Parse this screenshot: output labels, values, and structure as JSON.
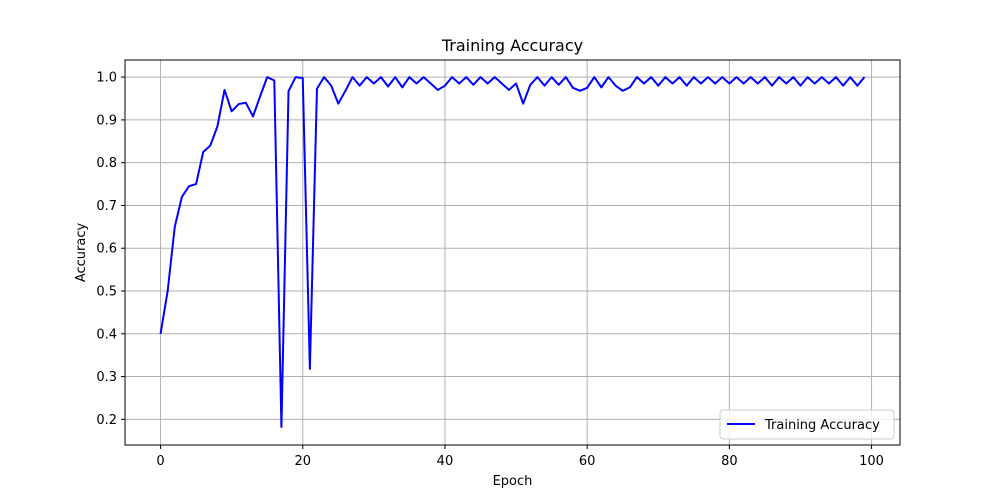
{
  "chart_data": {
    "type": "line",
    "title": "Training Accuracy",
    "xlabel": "Epoch",
    "ylabel": "Accuracy",
    "xlim": [
      -5,
      104
    ],
    "ylim": [
      0.14,
      1.04
    ],
    "xticks": [
      0,
      20,
      40,
      60,
      80,
      100
    ],
    "yticks": [
      0.2,
      0.3,
      0.4,
      0.5,
      0.6,
      0.7,
      0.8,
      0.9,
      1.0
    ],
    "xtick_labels": [
      "0",
      "20",
      "40",
      "60",
      "80",
      "100"
    ],
    "ytick_labels": [
      "0.2",
      "0.3",
      "0.4",
      "0.5",
      "0.6",
      "0.7",
      "0.8",
      "0.9",
      "1.0"
    ],
    "grid": true,
    "legend_position": "lower-right",
    "series": [
      {
        "name": "Training Accuracy",
        "color": "#0000ff",
        "x": [
          0,
          1,
          2,
          3,
          4,
          5,
          6,
          7,
          8,
          9,
          10,
          11,
          12,
          13,
          14,
          15,
          16,
          17,
          18,
          19,
          20,
          21,
          22,
          23,
          24,
          25,
          26,
          27,
          28,
          29,
          30,
          31,
          32,
          33,
          34,
          35,
          36,
          37,
          38,
          39,
          40,
          41,
          42,
          43,
          44,
          45,
          46,
          47,
          48,
          49,
          50,
          51,
          52,
          53,
          54,
          55,
          56,
          57,
          58,
          59,
          60,
          61,
          62,
          63,
          64,
          65,
          66,
          67,
          68,
          69,
          70,
          71,
          72,
          73,
          74,
          75,
          76,
          77,
          78,
          79,
          80,
          81,
          82,
          83,
          84,
          85,
          86,
          87,
          88,
          89,
          90,
          91,
          92,
          93,
          94,
          95,
          96,
          97,
          98,
          99
        ],
        "values": [
          0.4,
          0.5,
          0.65,
          0.72,
          0.745,
          0.75,
          0.825,
          0.84,
          0.885,
          0.97,
          0.92,
          0.937,
          0.94,
          0.908,
          0.955,
          1.0,
          0.992,
          0.182,
          0.967,
          1.0,
          0.998,
          0.318,
          0.973,
          1.0,
          0.98,
          0.938,
          0.968,
          1.0,
          0.98,
          1.0,
          0.985,
          1.0,
          0.978,
          1.0,
          0.976,
          1.0,
          0.985,
          1.0,
          0.985,
          0.97,
          0.98,
          1.0,
          0.985,
          1.0,
          0.982,
          1.0,
          0.985,
          1.0,
          0.985,
          0.97,
          0.985,
          0.938,
          0.982,
          1.0,
          0.98,
          1.0,
          0.982,
          1.0,
          0.975,
          0.968,
          0.975,
          1.0,
          0.976,
          1.0,
          0.98,
          0.968,
          0.976,
          1.0,
          0.985,
          1.0,
          0.98,
          1.0,
          0.985,
          1.0,
          0.98,
          1.0,
          0.985,
          1.0,
          0.985,
          1.0,
          0.985,
          1.0,
          0.985,
          1.0,
          0.985,
          1.0,
          0.98,
          1.0,
          0.985,
          1.0,
          0.98,
          1.0,
          0.985,
          1.0,
          0.985,
          1.0,
          0.98,
          1.0,
          0.98,
          1.0
        ]
      }
    ]
  }
}
